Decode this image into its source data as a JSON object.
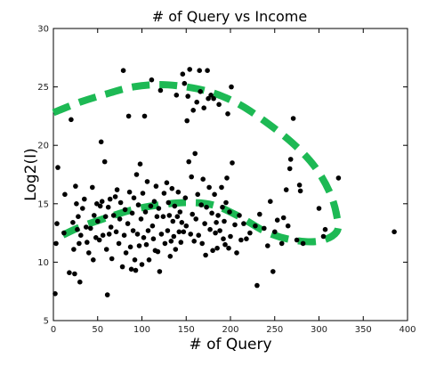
{
  "chart_data": {
    "type": "scatter",
    "title": "# of Query vs Income",
    "xlabel": "# of Query",
    "ylabel": "Log2(I)",
    "xlim": [
      0,
      400
    ],
    "ylim": [
      5,
      30
    ],
    "x_ticks": [
      "0",
      "50",
      "100",
      "150",
      "200",
      "250",
      "300",
      "350",
      "400"
    ],
    "y_ticks": [
      "5",
      "10",
      "15",
      "20",
      "25",
      "30"
    ],
    "grid": false,
    "legend": "none",
    "point_color": "#000000",
    "annotation_color": "#1db954",
    "points": [
      [
        2,
        7.3
      ],
      [
        3,
        11.6
      ],
      [
        4,
        13.3
      ],
      [
        5,
        18.1
      ],
      [
        12,
        12.5
      ],
      [
        13,
        15.8
      ],
      [
        18,
        9.1
      ],
      [
        20,
        22.2
      ],
      [
        22,
        13.4
      ],
      [
        23,
        11.1
      ],
      [
        24,
        9.0
      ],
      [
        25,
        16.5
      ],
      [
        26,
        15.0
      ],
      [
        27,
        12.8
      ],
      [
        28,
        13.9
      ],
      [
        29,
        11.6
      ],
      [
        30,
        8.3
      ],
      [
        31,
        12.3
      ],
      [
        33,
        14.6
      ],
      [
        35,
        15.4
      ],
      [
        37,
        13.0
      ],
      [
        38,
        11.7
      ],
      [
        40,
        10.8
      ],
      [
        42,
        12.9
      ],
      [
        44,
        16.4
      ],
      [
        45,
        10.2
      ],
      [
        46,
        14.0
      ],
      [
        48,
        12.1
      ],
      [
        49,
        15.0
      ],
      [
        50,
        13.5
      ],
      [
        52,
        11.9
      ],
      [
        53,
        14.8
      ],
      [
        54,
        20.3
      ],
      [
        55,
        15.2
      ],
      [
        56,
        12.3
      ],
      [
        58,
        18.6
      ],
      [
        59,
        13.9
      ],
      [
        60,
        11.1
      ],
      [
        61,
        7.2
      ],
      [
        62,
        14.7
      ],
      [
        63,
        12.4
      ],
      [
        64,
        15.4
      ],
      [
        65,
        13.0
      ],
      [
        66,
        10.3
      ],
      [
        68,
        14.0
      ],
      [
        70,
        15.6
      ],
      [
        71,
        12.6
      ],
      [
        72,
        16.2
      ],
      [
        74,
        11.6
      ],
      [
        75,
        13.7
      ],
      [
        76,
        15.1
      ],
      [
        78,
        9.6
      ],
      [
        79,
        26.4
      ],
      [
        80,
        12.3
      ],
      [
        81,
        14.5
      ],
      [
        82,
        10.8
      ],
      [
        84,
        13.3
      ],
      [
        85,
        22.5
      ],
      [
        86,
        16.0
      ],
      [
        87,
        11.3
      ],
      [
        88,
        9.4
      ],
      [
        89,
        14.2
      ],
      [
        90,
        12.7
      ],
      [
        91,
        15.5
      ],
      [
        92,
        10.2
      ],
      [
        93,
        9.3
      ],
      [
        94,
        17.5
      ],
      [
        95,
        12.4
      ],
      [
        96,
        14.9
      ],
      [
        97,
        11.4
      ],
      [
        98,
        18.4
      ],
      [
        99,
        13.7
      ],
      [
        100,
        9.8
      ],
      [
        101,
        15.9
      ],
      [
        102,
        12.1
      ],
      [
        103,
        22.5
      ],
      [
        104,
        14.3
      ],
      [
        105,
        11.5
      ],
      [
        106,
        16.9
      ],
      [
        107,
        12.7
      ],
      [
        108,
        10.2
      ],
      [
        110,
        14.8
      ],
      [
        111,
        25.6
      ],
      [
        112,
        13.1
      ],
      [
        113,
        12.0
      ],
      [
        114,
        15.2
      ],
      [
        115,
        11.0
      ],
      [
        116,
        16.5
      ],
      [
        117,
        13.9
      ],
      [
        118,
        10.9
      ],
      [
        119,
        14.6
      ],
      [
        120,
        9.2
      ],
      [
        121,
        24.7
      ],
      [
        122,
        12.4
      ],
      [
        124,
        13.9
      ],
      [
        125,
        15.9
      ],
      [
        126,
        11.6
      ],
      [
        128,
        16.8
      ],
      [
        129,
        12.7
      ],
      [
        130,
        15.1
      ],
      [
        131,
        14.0
      ],
      [
        132,
        10.5
      ],
      [
        133,
        11.8
      ],
      [
        134,
        16.3
      ],
      [
        135,
        13.5
      ],
      [
        136,
        12.2
      ],
      [
        137,
        14.8
      ],
      [
        138,
        11.1
      ],
      [
        139,
        24.3
      ],
      [
        140,
        13.9
      ],
      [
        141,
        16.0
      ],
      [
        142,
        12.6
      ],
      [
        143,
        14.3
      ],
      [
        144,
        11.7
      ],
      [
        145,
        13.4
      ],
      [
        146,
        26.1
      ],
      [
        147,
        12.6
      ],
      [
        148,
        25.3
      ],
      [
        149,
        15.5
      ],
      [
        150,
        13.1
      ],
      [
        151,
        22.1
      ],
      [
        152,
        24.2
      ],
      [
        153,
        18.6
      ],
      [
        154,
        26.5
      ],
      [
        155,
        12.4
      ],
      [
        156,
        17.3
      ],
      [
        157,
        14.1
      ],
      [
        158,
        23.0
      ],
      [
        159,
        11.8
      ],
      [
        160,
        19.3
      ],
      [
        161,
        13.7
      ],
      [
        162,
        23.7
      ],
      [
        163,
        15.8
      ],
      [
        164,
        12.3
      ],
      [
        165,
        26.4
      ],
      [
        166,
        24.6
      ],
      [
        167,
        14.9
      ],
      [
        168,
        11.6
      ],
      [
        169,
        17.1
      ],
      [
        170,
        23.2
      ],
      [
        171,
        13.3
      ],
      [
        172,
        10.6
      ],
      [
        173,
        14.7
      ],
      [
        174,
        26.4
      ],
      [
        175,
        24.0
      ],
      [
        176,
        16.4
      ],
      [
        177,
        12.8
      ],
      [
        178,
        24.3
      ],
      [
        179,
        14.2
      ],
      [
        180,
        11.0
      ],
      [
        181,
        24.0
      ],
      [
        182,
        15.8
      ],
      [
        183,
        12.5
      ],
      [
        184,
        13.4
      ],
      [
        185,
        11.2
      ],
      [
        186,
        14.0
      ],
      [
        187,
        23.5
      ],
      [
        188,
        12.7
      ],
      [
        190,
        16.4
      ],
      [
        191,
        14.7
      ],
      [
        192,
        12.0
      ],
      [
        193,
        13.5
      ],
      [
        194,
        11.5
      ],
      [
        195,
        15.1
      ],
      [
        196,
        17.2
      ],
      [
        197,
        22.7
      ],
      [
        198,
        11.2
      ],
      [
        199,
        14.3
      ],
      [
        200,
        12.2
      ],
      [
        201,
        25.0
      ],
      [
        202,
        18.5
      ],
      [
        205,
        13.2
      ],
      [
        207,
        10.8
      ],
      [
        210,
        14.0
      ],
      [
        212,
        11.9
      ],
      [
        215,
        13.3
      ],
      [
        218,
        12.0
      ],
      [
        222,
        12.5
      ],
      [
        228,
        13.1
      ],
      [
        230,
        8.0
      ],
      [
        233,
        14.1
      ],
      [
        238,
        12.9
      ],
      [
        242,
        11.4
      ],
      [
        245,
        15.2
      ],
      [
        248,
        9.2
      ],
      [
        250,
        12.6
      ],
      [
        253,
        13.6
      ],
      [
        258,
        11.6
      ],
      [
        260,
        13.8
      ],
      [
        263,
        16.2
      ],
      [
        265,
        13.1
      ],
      [
        267,
        18.0
      ],
      [
        268,
        18.8
      ],
      [
        271,
        22.3
      ],
      [
        275,
        11.9
      ],
      [
        278,
        16.6
      ],
      [
        279,
        16.1
      ],
      [
        282,
        11.6
      ],
      [
        300,
        14.6
      ],
      [
        305,
        12.2
      ],
      [
        307,
        12.8
      ],
      [
        322,
        17.2
      ],
      [
        385,
        12.6
      ]
    ],
    "upper_curve": [
      [
        0,
        22.8
      ],
      [
        30,
        23.7
      ],
      [
        60,
        24.4
      ],
      [
        90,
        25.0
      ],
      [
        120,
        25.2
      ],
      [
        150,
        25.0
      ],
      [
        180,
        24.5
      ],
      [
        210,
        23.5
      ],
      [
        240,
        22.0
      ],
      [
        270,
        20.2
      ],
      [
        295,
        18.2
      ],
      [
        312,
        16.0
      ],
      [
        320,
        14.0
      ],
      [
        320,
        12.6
      ],
      [
        300,
        11.8
      ],
      [
        270,
        11.9
      ],
      [
        240,
        12.6
      ],
      [
        210,
        13.9
      ],
      [
        180,
        14.9
      ],
      [
        150,
        15.1
      ],
      [
        120,
        14.9
      ],
      [
        90,
        14.5
      ],
      [
        60,
        13.8
      ],
      [
        30,
        13.0
      ],
      [
        10,
        12.3
      ]
    ]
  }
}
